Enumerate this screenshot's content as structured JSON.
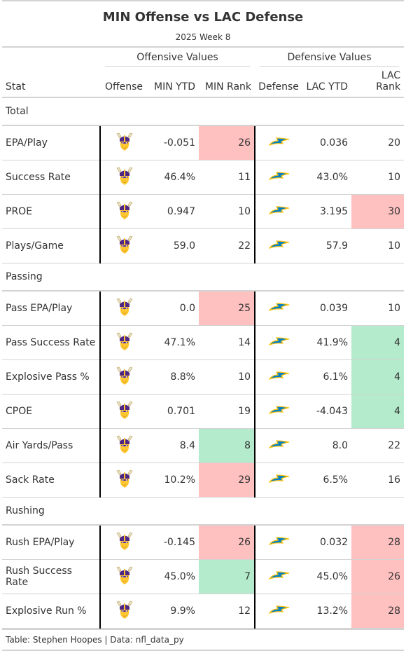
{
  "title": "MIN Offense vs LAC Defense",
  "subtitle": "2025 Week 8",
  "spanners": {
    "offense": "Offensive Values",
    "defense": "Defensive Values"
  },
  "columns": [
    "Stat",
    "Offense",
    "MIN YTD",
    "MIN Rank",
    "Defense",
    "LAC YTD",
    "LAC Rank"
  ],
  "icons": {
    "offense": "vikings-helmet-logo-icon",
    "defense": "chargers-bolt-logo-icon"
  },
  "colors": {
    "bad": "#ffc0c0",
    "good": "#b3ebcc"
  },
  "groups": [
    {
      "label": "Total",
      "rows": [
        {
          "stat": "EPA/Play",
          "min_ytd": "-0.051",
          "min_rank": "26",
          "min_color": "red",
          "lac_ytd": "0.036",
          "lac_rank": "20",
          "lac_color": ""
        },
        {
          "stat": "Success Rate",
          "min_ytd": "46.4%",
          "min_rank": "11",
          "min_color": "",
          "lac_ytd": "43.0%",
          "lac_rank": "10",
          "lac_color": ""
        },
        {
          "stat": "PROE",
          "min_ytd": "0.947",
          "min_rank": "10",
          "min_color": "",
          "lac_ytd": "3.195",
          "lac_rank": "30",
          "lac_color": "red"
        },
        {
          "stat": "Plays/Game",
          "min_ytd": "59.0",
          "min_rank": "22",
          "min_color": "",
          "lac_ytd": "57.9",
          "lac_rank": "10",
          "lac_color": ""
        }
      ]
    },
    {
      "label": "Passing",
      "rows": [
        {
          "stat": "Pass EPA/Play",
          "min_ytd": "0.0",
          "min_rank": "25",
          "min_color": "red",
          "lac_ytd": "0.039",
          "lac_rank": "10",
          "lac_color": ""
        },
        {
          "stat": "Pass Success Rate",
          "min_ytd": "47.1%",
          "min_rank": "14",
          "min_color": "",
          "lac_ytd": "41.9%",
          "lac_rank": "4",
          "lac_color": "green"
        },
        {
          "stat": "Explosive Pass %",
          "min_ytd": "8.8%",
          "min_rank": "10",
          "min_color": "",
          "lac_ytd": "6.1%",
          "lac_rank": "4",
          "lac_color": "green"
        },
        {
          "stat": "CPOE",
          "min_ytd": "0.701",
          "min_rank": "19",
          "min_color": "",
          "lac_ytd": "-4.043",
          "lac_rank": "4",
          "lac_color": "green"
        },
        {
          "stat": "Air Yards/Pass",
          "min_ytd": "8.4",
          "min_rank": "8",
          "min_color": "green",
          "lac_ytd": "8.0",
          "lac_rank": "22",
          "lac_color": ""
        },
        {
          "stat": "Sack Rate",
          "min_ytd": "10.2%",
          "min_rank": "29",
          "min_color": "red",
          "lac_ytd": "6.5%",
          "lac_rank": "16",
          "lac_color": ""
        }
      ]
    },
    {
      "label": "Rushing",
      "rows": [
        {
          "stat": "Rush EPA/Play",
          "min_ytd": "-0.145",
          "min_rank": "26",
          "min_color": "red",
          "lac_ytd": "0.032",
          "lac_rank": "28",
          "lac_color": "red"
        },
        {
          "stat": "Rush Success Rate",
          "min_ytd": "45.0%",
          "min_rank": "7",
          "min_color": "green",
          "lac_ytd": "45.0%",
          "lac_rank": "26",
          "lac_color": "red"
        },
        {
          "stat": "Explosive Run %",
          "min_ytd": "9.9%",
          "min_rank": "12",
          "min_color": "",
          "lac_ytd": "13.2%",
          "lac_rank": "28",
          "lac_color": "red"
        }
      ]
    }
  ],
  "footer": "Table: Stephen Hoopes | Data: nfl_data_py"
}
